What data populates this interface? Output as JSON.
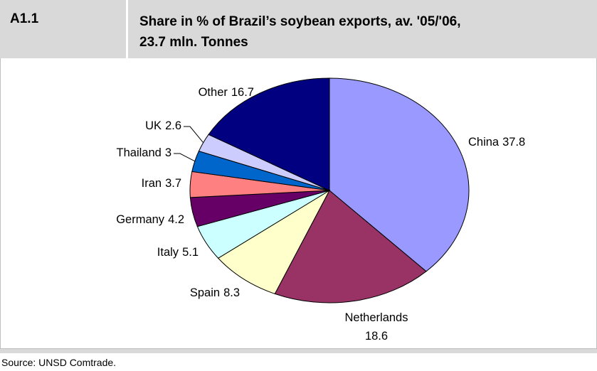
{
  "header": {
    "code": "A1.1"
  },
  "chart_data": {
    "type": "pie",
    "title_lines": [
      "Share in % of Brazil’s soybean exports, av.  '05/'06,",
      "23.7 mln. Tonnes"
    ],
    "categories": [
      "China",
      "Netherlands",
      "Spain",
      "Italy",
      "Germany",
      "Iran",
      "Thailand",
      "UK",
      "Other"
    ],
    "values": [
      37.8,
      18.6,
      8.3,
      5.1,
      4.2,
      3.7,
      3.0,
      2.6,
      16.7
    ],
    "colors": [
      "#9999ff",
      "#993366",
      "#ffffcc",
      "#ccffff",
      "#660066",
      "#ff8080",
      "#0066cc",
      "#ccccff",
      "#000080"
    ]
  },
  "footer": {
    "source": "Source: UNSD Comtrade."
  }
}
